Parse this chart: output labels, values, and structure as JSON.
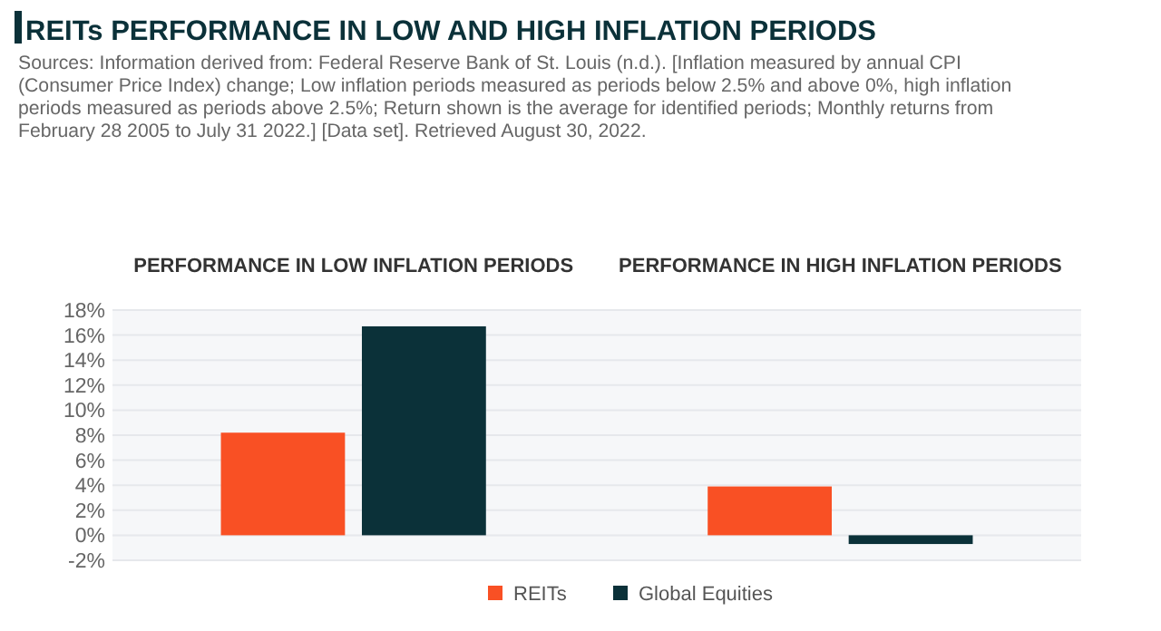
{
  "chart_data": {
    "type": "bar",
    "title": "REITs PERFORMANCE IN LOW AND HIGH INFLATION PERIODS",
    "annotations": [
      "Sources: Information derived from: Federal Reserve Bank of St. Louis (n.d.). [Inflation measured by annual CPI (Consumer Price Index) change; Low inflation periods measured as periods below 2.5% and above 0%, high inflation periods measured as periods above 2.5%; Return shown is the average for identified periods; Monthly returns from February 28 2005 to July 31 2022.] [Data set]. Retrieved August 30, 2022."
    ],
    "categories": [
      "PERFORMANCE IN LOW INFLATION PERIODS",
      "PERFORMANCE IN HIGH INFLATION PERIODS"
    ],
    "series": [
      {
        "name": "REITs",
        "color": "#f95024",
        "values": [
          8.2,
          3.9
        ]
      },
      {
        "name": "Global Equities",
        "color": "#0b3139",
        "values": [
          16.7,
          -0.7
        ]
      }
    ],
    "ylim": [
      -2,
      18
    ],
    "yticks": [
      {
        "value": -2,
        "label": "-2%"
      },
      {
        "value": 0,
        "label": "0%"
      },
      {
        "value": 2,
        "label": "2%"
      },
      {
        "value": 4,
        "label": "4%"
      },
      {
        "value": 6,
        "label": "6%"
      },
      {
        "value": 8,
        "label": "8%"
      },
      {
        "value": 10,
        "label": "10%"
      },
      {
        "value": 12,
        "label": "12%"
      },
      {
        "value": 14,
        "label": "14%"
      },
      {
        "value": 16,
        "label": "16%"
      },
      {
        "value": 18,
        "label": "18%"
      }
    ],
    "grid": "y",
    "legend": "bottom"
  }
}
